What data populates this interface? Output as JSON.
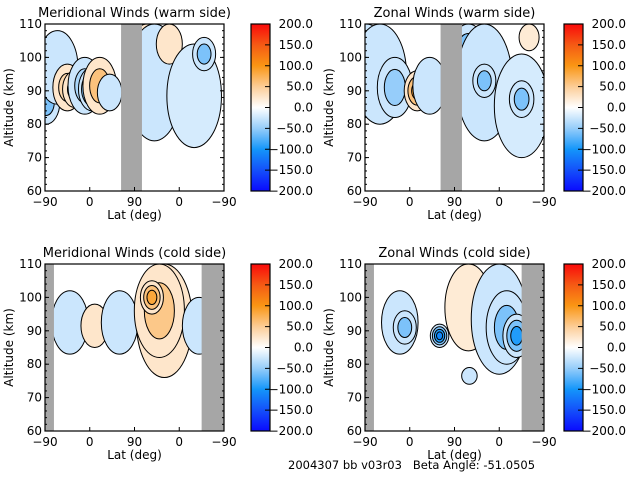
{
  "figure": {
    "footer": {
      "run_id": "2004307 bb v03r03",
      "beta_angle_label": "Beta Angle:",
      "beta_angle_value": "-51.0505"
    }
  },
  "chart_data": [
    {
      "type": "heatmap",
      "title": "Meridional Winds (warm side)",
      "xlabel": "Lat (deg)",
      "ylabel": "Altitude (km)",
      "x_tick_labels": [
        "-90",
        "0",
        "90",
        "0",
        "-90"
      ],
      "y_ticks": [
        60,
        70,
        80,
        90,
        100,
        110
      ],
      "ylim": [
        60,
        110
      ],
      "colorbar": {
        "ticks": [
          "200.0",
          "150.0",
          "100.0",
          "50.0",
          "0.0",
          "-50.0",
          "-100.0",
          "-150.0",
          "-200.0"
        ],
        "range": [
          -200,
          200
        ]
      },
      "no_data_bands": [
        [
          63,
          105
        ]
      ],
      "contour_blobs": [
        {
          "lat": -88,
          "alt": [
            80,
            93
          ],
          "value": -60
        },
        {
          "lat": -65,
          "alt": [
            86,
            108
          ],
          "value": -30
        },
        {
          "lat": -45,
          "alt": [
            84,
            98
          ],
          "value": 40
        },
        {
          "lat": -30,
          "alt": [
            85,
            96
          ],
          "value": 60
        },
        {
          "lat": -10,
          "alt": [
            83,
            100
          ],
          "value": -40
        },
        {
          "lat": 5,
          "alt": [
            84,
            97
          ],
          "value": -110
        },
        {
          "lat": 20,
          "alt": [
            83,
            100
          ],
          "value": 70
        },
        {
          "lat": 40,
          "alt": [
            84,
            95
          ],
          "value": -30
        },
        {
          "lat": 115,
          "alt": [
            94,
            110
          ],
          "value": 40
        },
        {
          "lat": 130,
          "alt": [
            75,
            110
          ],
          "value": -25
        },
        {
          "lat": 160,
          "alt": [
            98,
            110
          ],
          "value": 25
        },
        {
          "lat": 210,
          "alt": [
            73,
            104
          ],
          "value": -20
        },
        {
          "lat": 230,
          "alt": [
            96,
            106
          ],
          "value": -60
        }
      ]
    },
    {
      "type": "heatmap",
      "title": "Zonal Winds (warm side)",
      "xlabel": "Lat (deg)",
      "ylabel": "Altitude (km)",
      "x_tick_labels": [
        "-90",
        "0",
        "90",
        "0",
        "-90"
      ],
      "y_ticks": [
        60,
        70,
        80,
        90,
        100,
        110
      ],
      "ylim": [
        60,
        110
      ],
      "colorbar": {
        "ticks": [
          "200.0",
          "150.0",
          "100.0",
          "50.0",
          "0.0",
          "-50.0",
          "-100.0",
          "-150.0",
          "-200.0"
        ],
        "range": [
          -200,
          200
        ]
      },
      "no_data_bands": [
        [
          62,
          105
        ]
      ],
      "contour_blobs": [
        {
          "lat": -88,
          "alt": [
            83,
            110
          ],
          "value": -25
        },
        {
          "lat": -88,
          "alt": [
            83,
            90
          ],
          "value": 40
        },
        {
          "lat": -60,
          "alt": [
            80,
            110
          ],
          "value": -30
        },
        {
          "lat": -30,
          "alt": [
            82,
            100
          ],
          "value": -50
        },
        {
          "lat": 15,
          "alt": [
            84,
            96
          ],
          "value": 90
        },
        {
          "lat": 40,
          "alt": [
            83,
            100
          ],
          "value": -30
        },
        {
          "lat": 118,
          "alt": [
            90,
            110
          ],
          "value": -90
        },
        {
          "lat": 150,
          "alt": [
            75,
            110
          ],
          "value": -30
        },
        {
          "lat": 150,
          "alt": [
            88,
            98
          ],
          "value": -60
        },
        {
          "lat": 225,
          "alt": [
            70,
            101
          ],
          "value": -20
        },
        {
          "lat": 225,
          "alt": [
            82,
            93
          ],
          "value": -60
        },
        {
          "lat": 240,
          "alt": [
            102,
            110
          ],
          "value": 20
        }
      ]
    },
    {
      "type": "heatmap",
      "title": "Meridional Winds (cold side)",
      "xlabel": "Lat (deg)",
      "ylabel": "Altitude (km)",
      "x_tick_labels": [
        "-90",
        "0",
        "90",
        "0",
        "-90"
      ],
      "y_ticks": [
        60,
        70,
        80,
        90,
        100,
        110
      ],
      "ylim": [
        60,
        110
      ],
      "colorbar": {
        "ticks": [
          "200.0",
          "150.0",
          "100.0",
          "50.0",
          "0.0",
          "-50.0",
          "-100.0",
          "-150.0",
          "-200.0"
        ],
        "range": [
          -200,
          200
        ]
      },
      "no_data_bands": [
        [
          -90,
          -72
        ],
        [
          225,
          270
        ]
      ],
      "contour_blobs": [
        {
          "lat": -40,
          "alt": [
            83,
            102
          ],
          "value": -30
        },
        {
          "lat": 10,
          "alt": [
            85,
            98
          ],
          "value": 25
        },
        {
          "lat": 60,
          "alt": [
            83,
            102
          ],
          "value": -35
        },
        {
          "lat": 150,
          "alt": [
            76,
            110
          ],
          "value": 25
        },
        {
          "lat": 140,
          "alt": [
            82,
            110
          ],
          "value": 55
        },
        {
          "lat": 125,
          "alt": [
            95,
            105
          ],
          "value": 85
        },
        {
          "lat": 220,
          "alt": [
            83,
            100
          ],
          "value": -25
        }
      ]
    },
    {
      "type": "heatmap",
      "title": "Zonal Winds (cold side)",
      "xlabel": "Lat (deg)",
      "ylabel": "Altitude (km)",
      "x_tick_labels": [
        "-90",
        "0",
        "90",
        "0",
        "-90"
      ],
      "y_ticks": [
        60,
        70,
        80,
        90,
        100,
        110
      ],
      "ylim": [
        60,
        110
      ],
      "colorbar": {
        "ticks": [
          "200.0",
          "150.0",
          "100.0",
          "50.0",
          "0.0",
          "-50.0",
          "-100.0",
          "-150.0",
          "-200.0"
        ],
        "range": [
          -200,
          200
        ]
      },
      "no_data_bands": [
        [
          -90,
          -72
        ],
        [
          225,
          270
        ]
      ],
      "contour_blobs": [
        {
          "lat": -20,
          "alt": [
            83,
            102
          ],
          "value": -30
        },
        {
          "lat": -10,
          "alt": [
            86,
            96
          ],
          "value": -70
        },
        {
          "lat": 60,
          "alt": [
            85,
            92
          ],
          "value": -110
        },
        {
          "lat": 118,
          "alt": [
            84,
            110
          ],
          "value": 20
        },
        {
          "lat": 120,
          "alt": [
            74,
            79
          ],
          "value": -25
        },
        {
          "lat": 180,
          "alt": [
            77,
            110
          ],
          "value": -30
        },
        {
          "lat": 195,
          "alt": [
            80,
            102
          ],
          "value": -60
        },
        {
          "lat": 215,
          "alt": [
            82,
            95
          ],
          "value": -100
        }
      ]
    }
  ]
}
